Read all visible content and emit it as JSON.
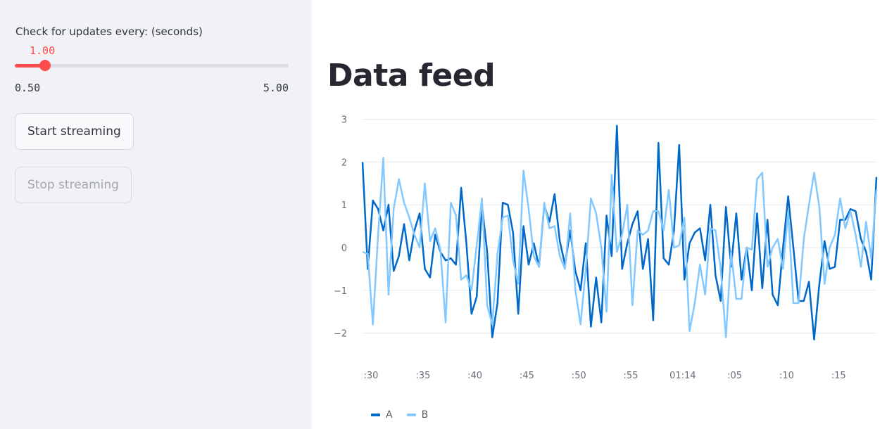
{
  "sidebar": {
    "slider": {
      "label": "Check for updates every: (seconds)",
      "value": 1.0,
      "value_text": "1.00",
      "min": 0.5,
      "min_text": "0.50",
      "max": 5.0,
      "max_text": "5.00",
      "accent_color": "#ff4b4b"
    },
    "start_button": {
      "label": "Start streaming"
    },
    "stop_button": {
      "label": "Stop streaming",
      "disabled": true
    }
  },
  "main": {
    "title": "Data feed"
  },
  "chart_data": {
    "type": "line",
    "title": "",
    "xlabel": "",
    "ylabel": "",
    "ylim": [
      -2.3,
      3.0
    ],
    "yticks": [
      3,
      2,
      1,
      0,
      -1,
      -2
    ],
    "ytick_labels": [
      "3",
      "2",
      "1",
      "0",
      "−1",
      "−2"
    ],
    "xtick_labels": [
      ":30",
      ":35",
      ":40",
      ":45",
      ":50",
      ":55",
      "01:14",
      ":05",
      ":10",
      ":15"
    ],
    "grid": "horizontal",
    "legend": "bottom-left",
    "series": [
      {
        "name": "A",
        "color": "#0068c9",
        "values": [
          2.0,
          -0.5,
          1.1,
          0.9,
          0.4,
          1.0,
          -0.55,
          -0.2,
          0.55,
          -0.3,
          0.4,
          0.8,
          -0.5,
          -0.7,
          0.3,
          -0.1,
          -0.3,
          -0.25,
          -0.4,
          1.4,
          0.1,
          -1.55,
          -1.15,
          1.0,
          -0.1,
          -2.1,
          -1.3,
          1.05,
          1.0,
          0.35,
          -1.55,
          0.5,
          -0.4,
          0.1,
          -0.45,
          1.0,
          0.6,
          1.25,
          0.15,
          -0.4,
          0.4,
          -0.55,
          -1.0,
          0.1,
          -1.85,
          -0.7,
          -1.75,
          0.75,
          -0.2,
          2.85,
          -0.5,
          0.1,
          0.55,
          0.85,
          -0.5,
          0.2,
          -1.7,
          2.45,
          -0.25,
          -0.4,
          0.4,
          2.4,
          -0.75,
          0.1,
          0.35,
          0.45,
          -0.3,
          1.0,
          -0.65,
          -1.25,
          0.95,
          -0.45,
          0.8,
          -0.75,
          0.0,
          -1.0,
          0.8,
          -0.95,
          0.65,
          -1.1,
          -1.35,
          0.0,
          1.2,
          0.0,
          -1.25,
          -1.25,
          -0.8,
          -2.15,
          -0.85,
          0.15,
          -0.5,
          -0.45,
          0.65,
          0.65,
          0.9,
          0.85,
          0.2,
          -0.1,
          -0.75,
          1.65
        ]
      },
      {
        "name": "B",
        "color": "#83c9ff",
        "values": [
          -0.1,
          -0.15,
          -1.8,
          0.3,
          2.1,
          -1.1,
          0.9,
          1.6,
          1.05,
          0.7,
          0.3,
          0.0,
          1.5,
          0.15,
          0.45,
          -0.05,
          -1.75,
          1.05,
          0.75,
          -0.75,
          -0.65,
          -1.0,
          0.05,
          1.15,
          -1.35,
          -1.8,
          -0.15,
          0.7,
          0.75,
          -0.3,
          -0.85,
          1.8,
          0.9,
          -0.2,
          -0.45,
          1.05,
          0.45,
          0.5,
          -0.2,
          -0.5,
          0.8,
          -1.0,
          -1.8,
          -0.5,
          1.15,
          0.8,
          0.0,
          -1.5,
          1.7,
          -0.1,
          0.3,
          1.0,
          -1.35,
          0.4,
          0.3,
          0.4,
          0.85,
          0.85,
          0.4,
          1.35,
          0.0,
          0.05,
          0.7,
          -1.95,
          -1.3,
          -0.4,
          -1.1,
          0.45,
          0.4,
          -0.5,
          -2.1,
          -0.1,
          -1.2,
          -1.2,
          0.0,
          -0.05,
          1.6,
          1.75,
          -0.45,
          0.0,
          0.2,
          -0.5,
          0.85,
          -1.3,
          -1.3,
          0.2,
          1.0,
          1.75,
          0.95,
          -0.85,
          0.0,
          0.3,
          1.15,
          0.45,
          0.85,
          0.3,
          -0.45,
          0.6,
          -0.25,
          1.35
        ]
      }
    ]
  }
}
